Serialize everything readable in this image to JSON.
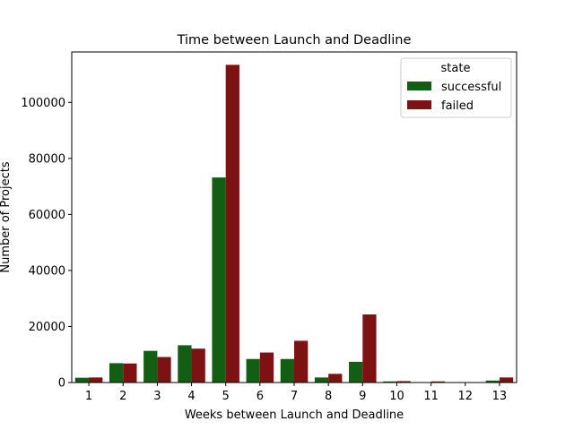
{
  "chart_data": {
    "type": "bar",
    "title": "Time between Launch and Deadline",
    "xlabel": "Weeks between Launch and Deadline",
    "ylabel": "Number of Projects",
    "categories": [
      "1",
      "2",
      "3",
      "4",
      "5",
      "6",
      "7",
      "8",
      "9",
      "10",
      "11",
      "12",
      "13"
    ],
    "series": [
      {
        "name": "successful",
        "color": "#125E12",
        "values": [
          1700,
          6900,
          11300,
          13300,
          73200,
          8400,
          8400,
          1800,
          7400,
          400,
          100,
          0,
          700
        ]
      },
      {
        "name": "failed",
        "color": "#7D1212",
        "values": [
          1800,
          6800,
          9100,
          12100,
          113400,
          10700,
          14900,
          3100,
          24300,
          500,
          400,
          0,
          1800
        ]
      }
    ],
    "ylim": [
      0,
      118000
    ],
    "yticks": [
      0,
      20000,
      40000,
      60000,
      80000,
      100000
    ],
    "legend": {
      "title": "state",
      "placement": "top-right"
    },
    "grid": false
  }
}
